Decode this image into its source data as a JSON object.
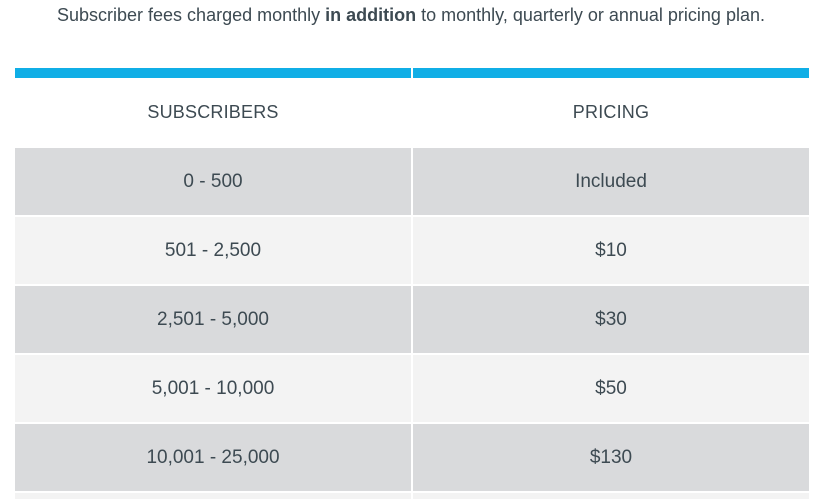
{
  "intro": {
    "before": "Subscriber fees charged monthly ",
    "emphasis": "in addition",
    "after": " to monthly, quarterly or annual pricing plan."
  },
  "table": {
    "headers": [
      "SUBSCRIBERS",
      "PRICING"
    ],
    "rows": [
      {
        "subscribers": "0 - 500",
        "pricing": "Included"
      },
      {
        "subscribers": "501 - 2,500",
        "pricing": "$10"
      },
      {
        "subscribers": "2,501 - 5,000",
        "pricing": "$30"
      },
      {
        "subscribers": "5,001 - 10,000",
        "pricing": "$50"
      },
      {
        "subscribers": "10,001 - 25,000",
        "pricing": "$130"
      }
    ]
  },
  "colors": {
    "accent": "#10aee6",
    "row_dark": "#d9dadc",
    "row_light": "#f3f3f3",
    "text": "#3d4a52"
  }
}
